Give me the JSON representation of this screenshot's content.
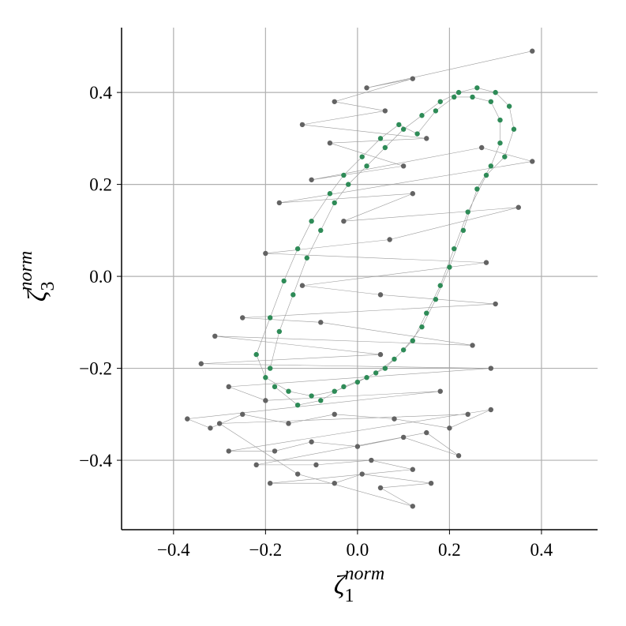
{
  "chart_data": {
    "type": "scatter",
    "xlabel": {
      "base": "ζ",
      "sub": "1",
      "sup": "norm"
    },
    "ylabel": {
      "base": "ζ",
      "sub": "3",
      "sup": "norm"
    },
    "xlim": [
      -0.513,
      0.522
    ],
    "ylim": [
      -0.551,
      0.541
    ],
    "xticks": [
      {
        "value": -0.4,
        "label": "−0.4"
      },
      {
        "value": -0.2,
        "label": "−0.2"
      },
      {
        "value": 0,
        "label": "0.0"
      },
      0.2,
      0.4
    ],
    "yticks": [
      {
        "value": -0.4,
        "label": "−0.4"
      },
      {
        "value": -0.2,
        "label": "−0.2"
      },
      {
        "value": 0,
        "label": "0.0"
      },
      0.2,
      0.4
    ],
    "grid": true,
    "line_color": "#9a9a9a",
    "series": [
      {
        "color": "#636363",
        "x": [
          0.38,
          0.02,
          0.12,
          -0.05,
          0.06,
          -0.12,
          0.15,
          -0.06,
          0.1,
          -0.1,
          0.27,
          0.38,
          -0.17,
          0.12,
          -0.03,
          0.35,
          0.07,
          -0.2,
          0.28,
          -0.12,
          0.05,
          0.3,
          -0.25,
          -0.08,
          0.25,
          -0.31,
          0.05,
          -0.34,
          0.29,
          -0.28,
          -0.2,
          0.18,
          -0.37,
          -0.32,
          -0.25,
          -0.15,
          -0.05,
          0.08,
          0.2,
          0.29,
          -0.28,
          -0.18,
          -0.1,
          0.0,
          0.1,
          0.22,
          0.15,
          -0.22,
          -0.09,
          0.03,
          0.12,
          -0.19,
          -0.05,
          0.01,
          0.16,
          0.05,
          0.12,
          -0.13,
          -0.3,
          0.24
        ],
        "y": [
          0.49,
          0.41,
          0.43,
          0.38,
          0.36,
          0.33,
          0.3,
          0.29,
          0.24,
          0.21,
          0.28,
          0.25,
          0.16,
          0.18,
          0.12,
          0.15,
          0.08,
          0.05,
          0.03,
          -0.02,
          -0.04,
          -0.06,
          -0.09,
          -0.1,
          -0.15,
          -0.13,
          -0.17,
          -0.19,
          -0.2,
          -0.24,
          -0.27,
          -0.25,
          -0.31,
          -0.33,
          -0.3,
          -0.32,
          -0.3,
          -0.31,
          -0.33,
          -0.29,
          -0.38,
          -0.38,
          -0.36,
          -0.37,
          -0.35,
          -0.39,
          -0.34,
          -0.41,
          -0.41,
          -0.4,
          -0.42,
          -0.45,
          -0.45,
          -0.43,
          -0.45,
          -0.46,
          -0.5,
          -0.43,
          -0.32,
          -0.3
        ]
      },
      {
        "color": "#2e8b57",
        "x": [
          -0.19,
          -0.17,
          -0.14,
          -0.11,
          -0.08,
          -0.05,
          -0.02,
          0.02,
          0.06,
          0.1,
          0.14,
          0.18,
          0.22,
          0.26,
          0.3,
          0.33,
          0.34,
          0.32,
          0.28,
          0.24,
          0.21,
          0.18,
          0.15,
          0.12,
          0.08,
          0.04,
          0.0,
          -0.05,
          -0.1,
          -0.15,
          -0.2,
          -0.22,
          -0.19,
          -0.16,
          -0.13,
          -0.1,
          -0.06,
          -0.03,
          0.01,
          0.05,
          0.09,
          0.13,
          0.17,
          0.21,
          0.25,
          0.29,
          0.31,
          0.31,
          0.29,
          0.26,
          0.23,
          0.2,
          0.17,
          0.14,
          0.1,
          0.06,
          0.02,
          -0.03,
          -0.08,
          -0.13,
          -0.18
        ],
        "y": [
          -0.2,
          -0.12,
          -0.04,
          0.04,
          0.1,
          0.16,
          0.2,
          0.24,
          0.28,
          0.32,
          0.35,
          0.38,
          0.4,
          0.41,
          0.4,
          0.37,
          0.32,
          0.26,
          0.22,
          0.14,
          0.06,
          -0.02,
          -0.08,
          -0.14,
          -0.18,
          -0.21,
          -0.23,
          -0.25,
          -0.26,
          -0.25,
          -0.22,
          -0.17,
          -0.09,
          -0.01,
          0.06,
          0.12,
          0.18,
          0.22,
          0.26,
          0.3,
          0.33,
          0.31,
          0.36,
          0.39,
          0.39,
          0.38,
          0.34,
          0.29,
          0.24,
          0.19,
          0.1,
          0.02,
          -0.05,
          -0.11,
          -0.16,
          -0.2,
          -0.22,
          -0.24,
          -0.27,
          -0.28,
          -0.24
        ]
      }
    ]
  }
}
